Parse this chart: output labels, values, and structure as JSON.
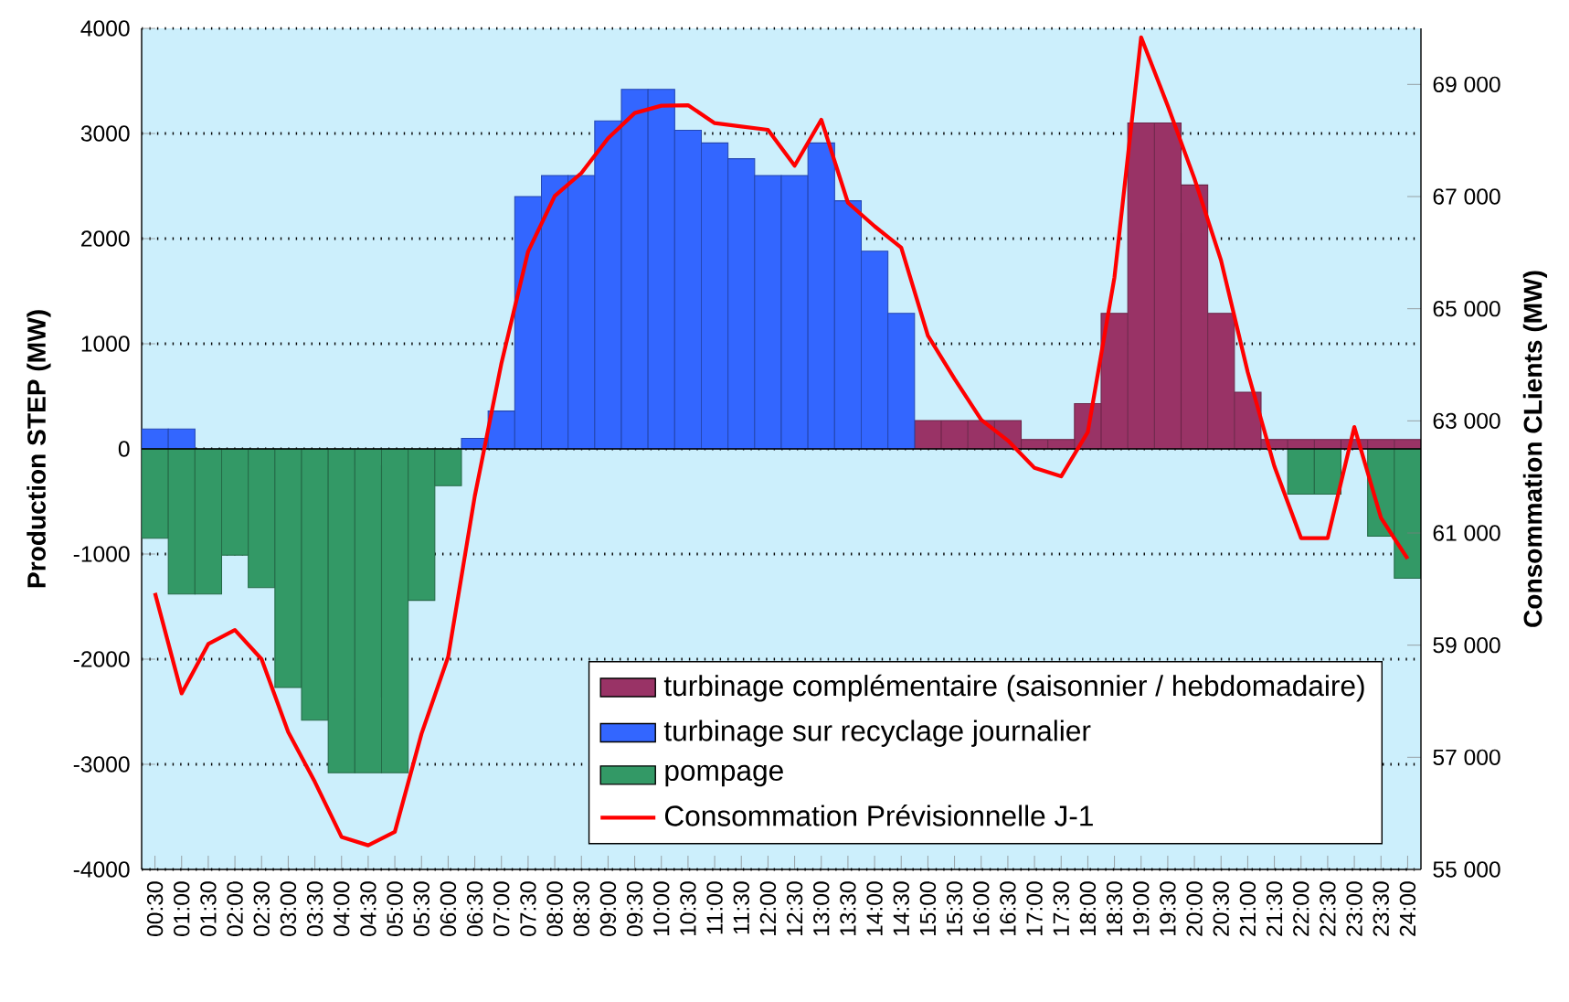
{
  "chart_data": {
    "type": "bar",
    "ylabel": "Production STEP (MW)",
    "y2label": "Consommation CLients (MW)",
    "categories": [
      "00:30",
      "01:00",
      "01:30",
      "02:00",
      "02:30",
      "03:00",
      "03:30",
      "04:00",
      "04:30",
      "05:00",
      "05:30",
      "06:00",
      "06:30",
      "07:00",
      "07:30",
      "08:00",
      "08:30",
      "09:00",
      "09:30",
      "10:00",
      "10:30",
      "11:00",
      "11:30",
      "12:00",
      "12:30",
      "13:00",
      "13:30",
      "14:00",
      "14:30",
      "15:00",
      "15:30",
      "16:00",
      "16:30",
      "17:00",
      "17:30",
      "18:00",
      "18:30",
      "19:00",
      "19:30",
      "20:00",
      "20:30",
      "21:00",
      "21:30",
      "22:00",
      "22:30",
      "23:00",
      "23:30",
      "24:00"
    ],
    "series": [
      {
        "name": "turbinage complémentaire (saisonnier / hebdomadaire)",
        "color": "#993366",
        "values": [
          null,
          null,
          null,
          null,
          null,
          null,
          null,
          null,
          null,
          null,
          null,
          null,
          null,
          null,
          null,
          null,
          null,
          null,
          null,
          null,
          null,
          null,
          null,
          null,
          null,
          null,
          null,
          null,
          null,
          270,
          270,
          270,
          270,
          90,
          90,
          430,
          1290,
          3100,
          3100,
          2510,
          1290,
          540,
          90,
          90,
          90,
          90,
          90,
          90
        ]
      },
      {
        "name": "turbinage sur recyclage journalier",
        "color": "#3366ff",
        "values": [
          190,
          190,
          null,
          null,
          null,
          null,
          null,
          null,
          null,
          null,
          null,
          null,
          100,
          360,
          2400,
          2600,
          2600,
          3120,
          3420,
          3420,
          3030,
          2910,
          2760,
          2600,
          2600,
          2910,
          2360,
          1880,
          1290,
          null,
          null,
          null,
          null,
          null,
          null,
          null,
          null,
          null,
          null,
          null,
          null,
          null,
          null,
          null,
          null,
          null,
          null,
          null
        ]
      },
      {
        "name": "pompage",
        "color": "#339966",
        "values": [
          -850,
          -1380,
          -1380,
          -1010,
          -1320,
          -2270,
          -2580,
          -3080,
          -3080,
          -3080,
          -1440,
          -350,
          null,
          null,
          null,
          null,
          null,
          null,
          null,
          null,
          null,
          null,
          null,
          null,
          null,
          null,
          null,
          null,
          null,
          null,
          null,
          null,
          null,
          null,
          null,
          null,
          null,
          null,
          null,
          null,
          null,
          null,
          null,
          -430,
          -430,
          null,
          -830,
          -1230
        ]
      },
      {
        "name": "Consommation Prévisionnelle J-1",
        "type": "line",
        "axis": "y2",
        "color": "#ff0000",
        "values": [
          59930,
          58140,
          59020,
          59270,
          58750,
          57450,
          56560,
          55580,
          55430,
          55670,
          57420,
          58790,
          61660,
          64030,
          66020,
          67010,
          67420,
          68040,
          68490,
          68620,
          68630,
          68310,
          68250,
          68190,
          67550,
          68370,
          66890,
          66470,
          66090,
          64520,
          63750,
          63020,
          62650,
          62160,
          62010,
          62800,
          65560,
          69840,
          68620,
          67320,
          65860,
          63870,
          62190,
          60910,
          60910,
          62890,
          61270,
          60540
        ]
      }
    ],
    "ylim": [
      -4000,
      4000
    ],
    "yticks": [
      -4000,
      -3000,
      -2000,
      -1000,
      0,
      1000,
      2000,
      3000,
      4000
    ],
    "y2lim": [
      55000,
      70000
    ],
    "y2ticks": [
      {
        "value": 55000,
        "label": "55 000"
      },
      {
        "value": 57000,
        "label": "57 000"
      },
      {
        "value": 59000,
        "label": "59 000"
      },
      {
        "value": 61000,
        "label": "61 000"
      },
      {
        "value": 63000,
        "label": "63 000"
      },
      {
        "value": 65000,
        "label": "65 000"
      },
      {
        "value": 67000,
        "label": "67 000"
      },
      {
        "value": 69000,
        "label": "69 000"
      }
    ],
    "grid": "y",
    "legend": "bottom right"
  }
}
